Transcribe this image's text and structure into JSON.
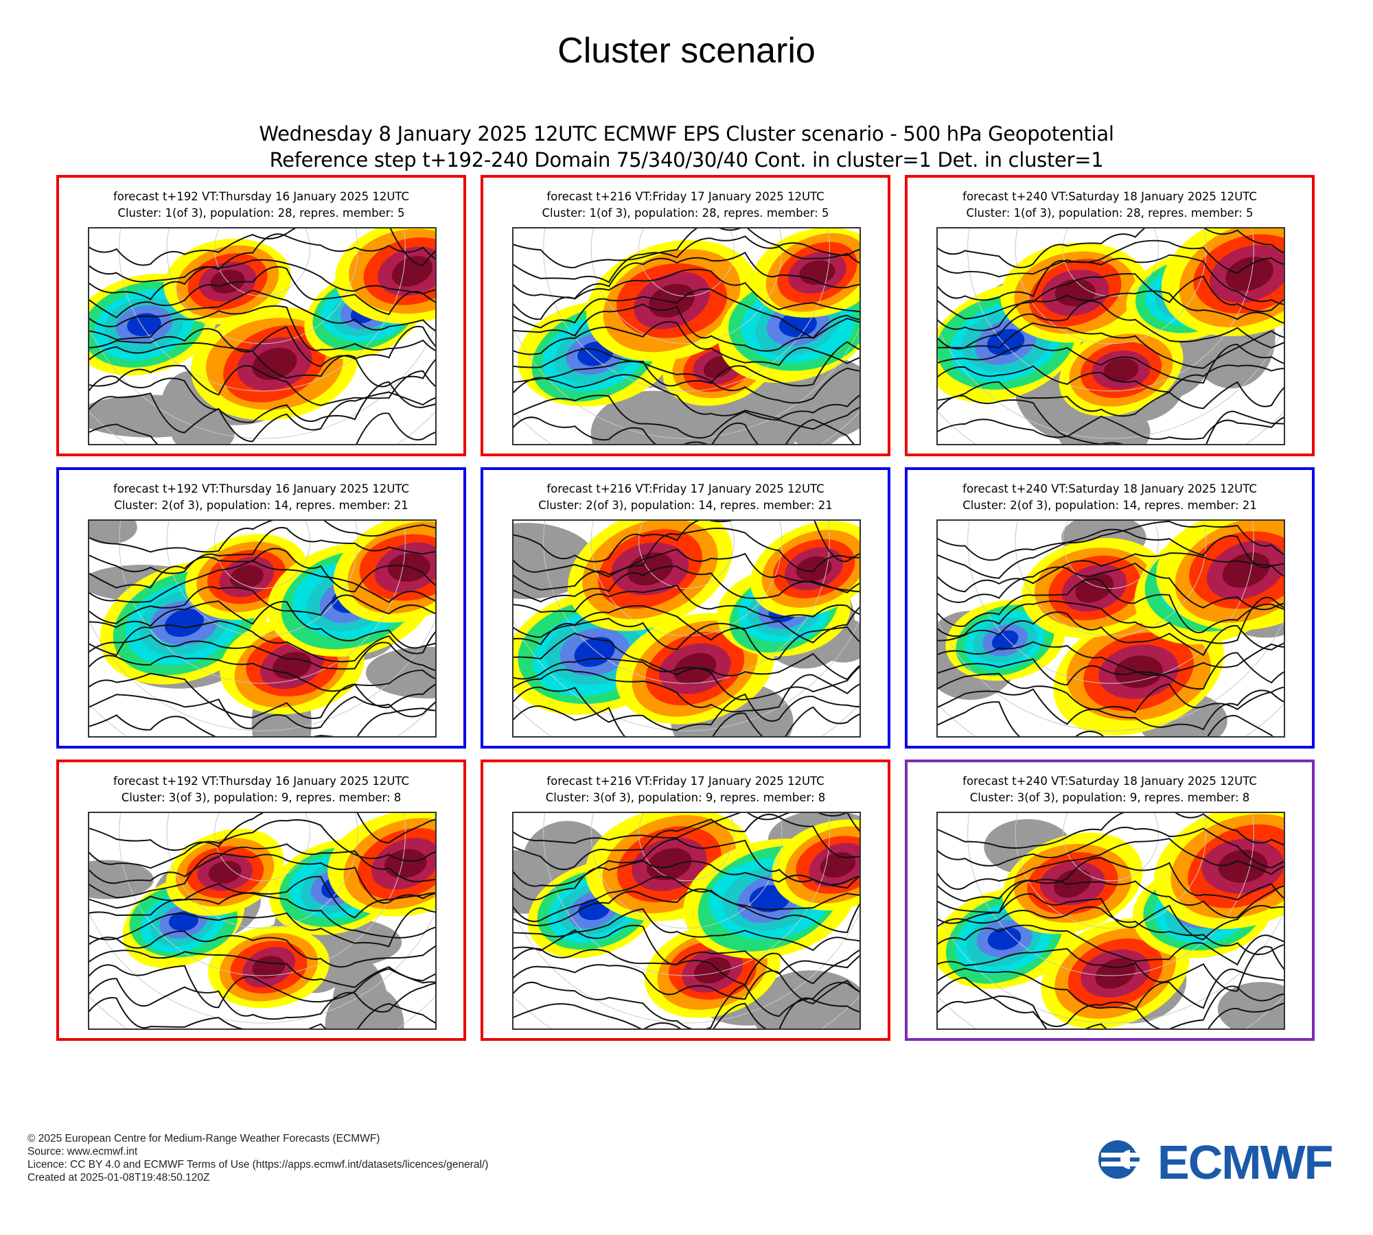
{
  "page": {
    "title": "Cluster scenario",
    "subtitle_line1": "Wednesday 8 January 2025 12UTC ECMWF EPS Cluster scenario - 500 hPa Geopotential",
    "subtitle_line2": "Reference step t+192-240 Domain 75/340/30/40 Cont. in cluster=1 Det. in cluster=1"
  },
  "colors": {
    "cluster1_border": "#ee0000",
    "cluster2_border": "#0000ee",
    "cluster3_border": "#ee0000",
    "deterministic_cluster_border": "#7b2bb5",
    "anomaly_scale": [
      "#000099",
      "#0033cc",
      "#5a82e6",
      "#19c8c8",
      "#00e0e0",
      "#22dd77",
      "#ffff00",
      "#ff9900",
      "#ff3300",
      "#b01e50",
      "#7a0a28"
    ],
    "land_gray": "#9a9a9a",
    "ecmwf_blue": "#1a5aa8"
  },
  "panels": [
    {
      "line1": "forecast t+192 VT:Thursday 16 January 2025 12UTC",
      "line2": "Cluster: 1(of 3), population: 28, repres. member: 5"
    },
    {
      "line1": "forecast t+216 VT:Friday 17 January 2025 12UTC",
      "line2": "Cluster: 1(of 3), population: 28, repres. member: 5"
    },
    {
      "line1": "forecast t+240 VT:Saturday 18 January 2025 12UTC",
      "line2": "Cluster: 1(of 3), population: 28, repres. member: 5"
    },
    {
      "line1": "forecast t+192 VT:Thursday 16 January 2025 12UTC",
      "line2": "Cluster: 2(of 3), population: 14, repres. member: 21"
    },
    {
      "line1": "forecast t+216 VT:Friday 17 January 2025 12UTC",
      "line2": "Cluster: 2(of 3), population: 14, repres. member: 21"
    },
    {
      "line1": "forecast t+240 VT:Saturday 18 January 2025 12UTC",
      "line2": "Cluster: 2(of 3), population: 14, repres. member: 21"
    },
    {
      "line1": "forecast t+192 VT:Thursday 16 January 2025 12UTC",
      "line2": "Cluster: 3(of 3), population: 9, repres. member: 8"
    },
    {
      "line1": "forecast t+216 VT:Friday 17 January 2025 12UTC",
      "line2": "Cluster: 3(of 3), population: 9, repres. member: 8"
    },
    {
      "line1": "forecast t+240 VT:Saturday 18 January 2025 12UTC",
      "line2": "Cluster: 3(of 3), population: 9, repres. member: 8"
    }
  ],
  "footer": {
    "copyright": "© 2025 European Centre for Medium-Range Weather Forecasts (ECMWF)",
    "source": "Source: www.ecmwf.int",
    "licence": "Licence: CC BY 4.0 and ECMWF Terms of Use (https://apps.ecmwf.int/datasets/licences/general/)",
    "created": "Created at 2025-01-08T19:48:50.120Z"
  },
  "logo": {
    "text": "ECMWF"
  }
}
